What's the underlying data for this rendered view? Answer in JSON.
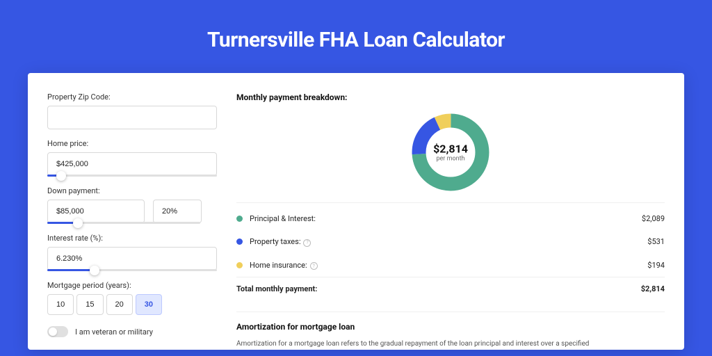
{
  "title": "Turnersville FHA Loan Calculator",
  "colors": {
    "page_bg": "#3656e3",
    "card_bg": "#ffffff",
    "principal": "#4fab8e",
    "taxes": "#3656e3",
    "insurance": "#f0cf5b"
  },
  "form": {
    "zip": {
      "label": "Property Zip Code:",
      "value": ""
    },
    "price": {
      "label": "Home price:",
      "value": "$425,000",
      "slider_pct": 8
    },
    "down": {
      "label": "Down payment:",
      "value": "$85,000",
      "pct": "20%",
      "slider_pct": 20
    },
    "rate": {
      "label": "Interest rate (%):",
      "value": "6.230%",
      "slider_pct": 28
    },
    "period": {
      "label": "Mortgage period (years):",
      "options": [
        "10",
        "15",
        "20",
        "30"
      ],
      "selected": "30"
    },
    "veteran": {
      "label": "I am veteran or military",
      "on": false
    }
  },
  "breakdown": {
    "section_title": "Monthly payment breakdown:",
    "center_amount": "$2,814",
    "center_sub": "per month",
    "items": [
      {
        "label": "Principal & Interest:",
        "value": "$2,089",
        "color": "#4fab8e",
        "info": false,
        "pct": 74
      },
      {
        "label": "Property taxes:",
        "value": "$531",
        "color": "#3656e3",
        "info": true,
        "pct": 19
      },
      {
        "label": "Home insurance:",
        "value": "$194",
        "color": "#f0cf5b",
        "info": true,
        "pct": 7
      }
    ],
    "total_label": "Total monthly payment:",
    "total_value": "$2,814"
  },
  "amort": {
    "title": "Amortization for mortgage loan",
    "text": "Amortization for a mortgage loan refers to the gradual repayment of the loan principal and interest over a specified"
  }
}
